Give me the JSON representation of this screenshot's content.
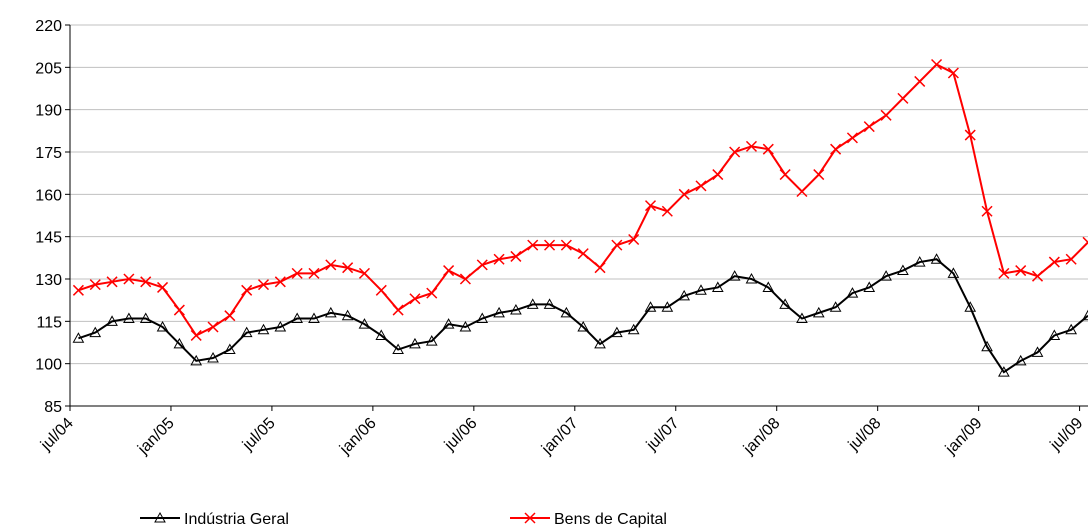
{
  "chart_data": {
    "type": "line",
    "categories": [
      "jul/04",
      null,
      null,
      null,
      null,
      null,
      "jan/05",
      null,
      null,
      null,
      null,
      null,
      "jul/05",
      null,
      null,
      null,
      null,
      null,
      "jan/06",
      null,
      null,
      null,
      null,
      null,
      "jul/06",
      null,
      null,
      null,
      null,
      null,
      "jan/07",
      null,
      null,
      null,
      null,
      null,
      "jul/07",
      null,
      null,
      null,
      null,
      null,
      "jan/08",
      null,
      null,
      null,
      null,
      null,
      "jul/08",
      null,
      null,
      null,
      null,
      null,
      "jan/09",
      null,
      null,
      null,
      null,
      null,
      "jul/09"
    ],
    "series": [
      {
        "name": "Indústria Geral",
        "color": "#000000",
        "marker": "triangle",
        "values": [
          109,
          111,
          115,
          116,
          116,
          113,
          107,
          101,
          102,
          105,
          111,
          112,
          113,
          116,
          116,
          118,
          117,
          114,
          110,
          105,
          107,
          108,
          114,
          113,
          116,
          118,
          119,
          121,
          121,
          118,
          113,
          107,
          111,
          112,
          120,
          120,
          124,
          126,
          127,
          131,
          130,
          127,
          121,
          116,
          118,
          120,
          125,
          127,
          131,
          133,
          136,
          137,
          132,
          120,
          106,
          97,
          101,
          104,
          110,
          112,
          117
        ]
      },
      {
        "name": "Bens de Capital",
        "color": "#ff0000",
        "marker": "x",
        "values": [
          126,
          128,
          129,
          130,
          129,
          127,
          119,
          110,
          113,
          117,
          126,
          128,
          129,
          132,
          132,
          135,
          134,
          132,
          126,
          119,
          123,
          125,
          133,
          130,
          135,
          137,
          138,
          142,
          142,
          142,
          139,
          134,
          142,
          144,
          156,
          154,
          160,
          163,
          167,
          175,
          177,
          176,
          167,
          161,
          167,
          176,
          180,
          184,
          188,
          194,
          200,
          206,
          203,
          181,
          154,
          132,
          133,
          131,
          136,
          137,
          143
        ]
      }
    ],
    "ylim": [
      85,
      220
    ],
    "yticks": [
      85,
      100,
      115,
      130,
      145,
      160,
      175,
      190,
      205,
      220
    ],
    "grid": true,
    "legend": "bottom"
  }
}
